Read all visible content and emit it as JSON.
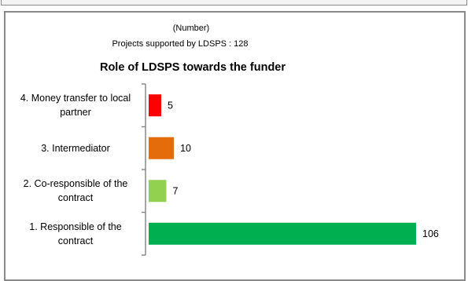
{
  "chart_data": {
    "type": "bar",
    "orientation": "horizontal",
    "note": "(Number)",
    "subtitle": "Projects supported by LDSPS : 128",
    "title": "Role of LDSPS towards the funder",
    "categories": [
      "4. Money transfer to local partner",
      "3. Intermediator",
      "2. Co-responsible of the contract",
      "1. Responsible of the contract"
    ],
    "values": [
      5,
      10,
      7,
      106
    ],
    "colors": [
      "#ff0000",
      "#e46c0a",
      "#92d050",
      "#00b050"
    ]
  }
}
